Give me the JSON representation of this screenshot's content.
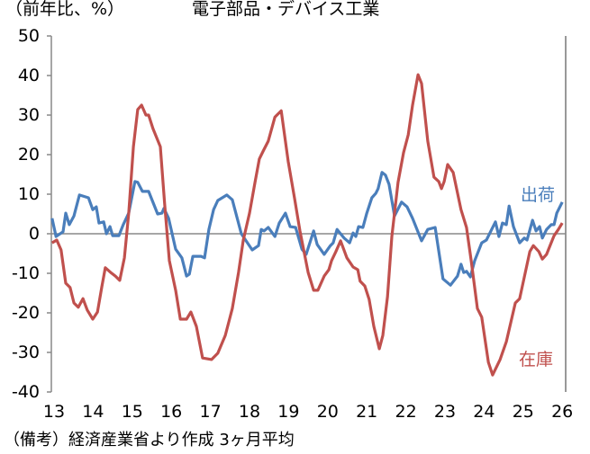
{
  "chart_data": {
    "type": "line",
    "title": "電子部品・デバイス工業",
    "ylabel": "（前年比、%）",
    "xlabel": "",
    "note": "（備考）経済産業省より作成 3ヶ月平均",
    "ylim": [
      -40,
      50
    ],
    "xlim": [
      13,
      26
    ],
    "y_ticks": [
      "50",
      "40",
      "30",
      "20",
      "10",
      "0",
      "-10",
      "-20",
      "-30",
      "-40"
    ],
    "x_ticks": [
      "13",
      "14",
      "15",
      "16",
      "17",
      "18",
      "19",
      "20",
      "21",
      "22",
      "23",
      "24",
      "25",
      "26"
    ],
    "grid": false,
    "colors": {
      "shipments": "#4a7ebb",
      "inventory": "#c0504d"
    },
    "series": [
      {
        "name": "出荷",
        "key": "shipments",
        "points": [
          [
            12.95,
            3.9
          ],
          [
            13.05,
            -0.7
          ],
          [
            13.23,
            0.5
          ],
          [
            13.3,
            5.2
          ],
          [
            13.39,
            2.3
          ],
          [
            13.51,
            4.5
          ],
          [
            13.65,
            9.8
          ],
          [
            13.88,
            9.1
          ],
          [
            13.99,
            6.1
          ],
          [
            14.08,
            6.8
          ],
          [
            14.15,
            2.7
          ],
          [
            14.27,
            3.0
          ],
          [
            14.34,
            0
          ],
          [
            14.43,
            1.8
          ],
          [
            14.5,
            -0.5
          ],
          [
            14.66,
            -0.5
          ],
          [
            14.77,
            2.3
          ],
          [
            14.91,
            5.2
          ],
          [
            15.07,
            13.2
          ],
          [
            15.14,
            13.0
          ],
          [
            15.26,
            10.7
          ],
          [
            15.42,
            10.7
          ],
          [
            15.65,
            5.0
          ],
          [
            15.76,
            5.2
          ],
          [
            15.81,
            6.4
          ],
          [
            15.93,
            3.9
          ],
          [
            16.11,
            -3.9
          ],
          [
            16.27,
            -6.1
          ],
          [
            16.39,
            -10.7
          ],
          [
            16.46,
            -10.2
          ],
          [
            16.55,
            -5.7
          ],
          [
            16.76,
            -5.7
          ],
          [
            16.85,
            -6.1
          ],
          [
            16.96,
            1.1
          ],
          [
            17.08,
            6.1
          ],
          [
            17.19,
            8.4
          ],
          [
            17.42,
            9.8
          ],
          [
            17.56,
            8.6
          ],
          [
            17.79,
            0
          ],
          [
            18.07,
            -4.1
          ],
          [
            18.23,
            -3.0
          ],
          [
            18.3,
            1.1
          ],
          [
            18.37,
            0.7
          ],
          [
            18.48,
            1.6
          ],
          [
            18.65,
            -0.7
          ],
          [
            18.76,
            2.7
          ],
          [
            18.92,
            5.2
          ],
          [
            19.04,
            1.8
          ],
          [
            19.18,
            1.6
          ],
          [
            19.34,
            -3.9
          ],
          [
            19.45,
            -5.2
          ],
          [
            19.64,
            0.7
          ],
          [
            19.73,
            -2.7
          ],
          [
            19.91,
            -5.2
          ],
          [
            20.07,
            -3.0
          ],
          [
            20.14,
            -2.3
          ],
          [
            20.24,
            1.1
          ],
          [
            20.42,
            -1.1
          ],
          [
            20.56,
            -2.3
          ],
          [
            20.65,
            0.2
          ],
          [
            20.72,
            -0.7
          ],
          [
            20.79,
            1.8
          ],
          [
            20.9,
            1.6
          ],
          [
            21.0,
            5.2
          ],
          [
            21.13,
            9.1
          ],
          [
            21.23,
            10.2
          ],
          [
            21.29,
            11.4
          ],
          [
            21.39,
            15.5
          ],
          [
            21.48,
            14.8
          ],
          [
            21.57,
            12.5
          ],
          [
            21.71,
            4.5
          ],
          [
            21.89,
            8.0
          ],
          [
            22.03,
            6.8
          ],
          [
            22.17,
            3.9
          ],
          [
            22.4,
            -1.8
          ],
          [
            22.56,
            1.1
          ],
          [
            22.75,
            1.6
          ],
          [
            22.95,
            -11.4
          ],
          [
            23.14,
            -13.0
          ],
          [
            23.32,
            -10.7
          ],
          [
            23.41,
            -7.7
          ],
          [
            23.48,
            -9.8
          ],
          [
            23.55,
            -9.5
          ],
          [
            23.65,
            -10.9
          ],
          [
            23.76,
            -6.8
          ],
          [
            23.94,
            -2.3
          ],
          [
            24.06,
            -1.6
          ],
          [
            24.29,
            3.0
          ],
          [
            24.38,
            -0.7
          ],
          [
            24.47,
            2.7
          ],
          [
            24.57,
            2.3
          ],
          [
            24.64,
            7.0
          ],
          [
            24.75,
            1.8
          ],
          [
            24.91,
            -2.3
          ],
          [
            25.03,
            -1.1
          ],
          [
            25.1,
            -1.6
          ],
          [
            25.24,
            3.4
          ],
          [
            25.33,
            0.7
          ],
          [
            25.42,
            1.8
          ],
          [
            25.49,
            -1.1
          ],
          [
            25.6,
            1.1
          ],
          [
            25.72,
            2.3
          ],
          [
            25.79,
            2.3
          ],
          [
            25.86,
            5.2
          ],
          [
            26.0,
            8.0
          ]
        ]
      },
      {
        "name": "在庫",
        "key": "inventory",
        "points": [
          [
            12.95,
            -2.3
          ],
          [
            13.07,
            -1.6
          ],
          [
            13.18,
            -4.1
          ],
          [
            13.3,
            -12.5
          ],
          [
            13.41,
            -13.6
          ],
          [
            13.51,
            -17.5
          ],
          [
            13.62,
            -18.6
          ],
          [
            13.74,
            -16.4
          ],
          [
            13.85,
            -19.3
          ],
          [
            13.99,
            -21.6
          ],
          [
            14.11,
            -19.8
          ],
          [
            14.22,
            -13.6
          ],
          [
            14.31,
            -8.6
          ],
          [
            14.45,
            -9.8
          ],
          [
            14.57,
            -10.7
          ],
          [
            14.68,
            -11.8
          ],
          [
            14.8,
            -6.1
          ],
          [
            14.91,
            5.2
          ],
          [
            15.03,
            22.0
          ],
          [
            15.14,
            31.4
          ],
          [
            15.24,
            32.5
          ],
          [
            15.35,
            30.0
          ],
          [
            15.42,
            30.0
          ],
          [
            15.53,
            26.6
          ],
          [
            15.72,
            22.0
          ],
          [
            15.83,
            7.5
          ],
          [
            15.95,
            -6.8
          ],
          [
            16.11,
            -14.3
          ],
          [
            16.23,
            -21.6
          ],
          [
            16.39,
            -21.6
          ],
          [
            16.5,
            -19.8
          ],
          [
            16.64,
            -23.4
          ],
          [
            16.8,
            -31.4
          ],
          [
            17.03,
            -31.8
          ],
          [
            17.19,
            -30.2
          ],
          [
            17.38,
            -25.7
          ],
          [
            17.56,
            -18.9
          ],
          [
            17.72,
            -9.8
          ],
          [
            17.84,
            -1.6
          ],
          [
            18.0,
            5.2
          ],
          [
            18.14,
            13.0
          ],
          [
            18.25,
            18.9
          ],
          [
            18.35,
            20.9
          ],
          [
            18.48,
            23.4
          ],
          [
            18.65,
            29.5
          ],
          [
            18.81,
            31.1
          ],
          [
            18.99,
            18.2
          ],
          [
            19.15,
            9.1
          ],
          [
            19.29,
            0.7
          ],
          [
            19.5,
            -9.8
          ],
          [
            19.64,
            -14.3
          ],
          [
            19.75,
            -14.3
          ],
          [
            19.91,
            -10.7
          ],
          [
            20.03,
            -9.1
          ],
          [
            20.1,
            -6.8
          ],
          [
            20.21,
            -4.5
          ],
          [
            20.33,
            -1.8
          ],
          [
            20.49,
            -6.1
          ],
          [
            20.65,
            -8.4
          ],
          [
            20.77,
            -9.1
          ],
          [
            20.83,
            -12.0
          ],
          [
            20.95,
            -13.2
          ],
          [
            21.06,
            -16.6
          ],
          [
            21.18,
            -23.4
          ],
          [
            21.32,
            -29.1
          ],
          [
            21.41,
            -25.7
          ],
          [
            21.53,
            -15.9
          ],
          [
            21.64,
            -0.7
          ],
          [
            21.8,
            13.0
          ],
          [
            21.94,
            20.5
          ],
          [
            22.06,
            25.0
          ],
          [
            22.17,
            32.5
          ],
          [
            22.31,
            40.2
          ],
          [
            22.4,
            38.0
          ],
          [
            22.56,
            23.4
          ],
          [
            22.72,
            14.3
          ],
          [
            22.84,
            13.2
          ],
          [
            22.91,
            11.4
          ],
          [
            22.98,
            13.2
          ],
          [
            23.07,
            17.5
          ],
          [
            23.21,
            15.5
          ],
          [
            23.41,
            6.1
          ],
          [
            23.55,
            1.6
          ],
          [
            23.67,
            -6.8
          ],
          [
            23.83,
            -18.9
          ],
          [
            23.94,
            -21.1
          ],
          [
            24.11,
            -32.5
          ],
          [
            24.22,
            -35.7
          ],
          [
            24.41,
            -31.8
          ],
          [
            24.57,
            -27.3
          ],
          [
            24.8,
            -17.5
          ],
          [
            24.91,
            -16.4
          ],
          [
            25.17,
            -4.5
          ],
          [
            25.26,
            -3.0
          ],
          [
            25.4,
            -4.5
          ],
          [
            25.49,
            -6.4
          ],
          [
            25.6,
            -5.2
          ],
          [
            25.7,
            -2.7
          ],
          [
            25.79,
            -0.5
          ],
          [
            25.9,
            1.1
          ],
          [
            26.0,
            2.7
          ]
        ]
      }
    ]
  }
}
